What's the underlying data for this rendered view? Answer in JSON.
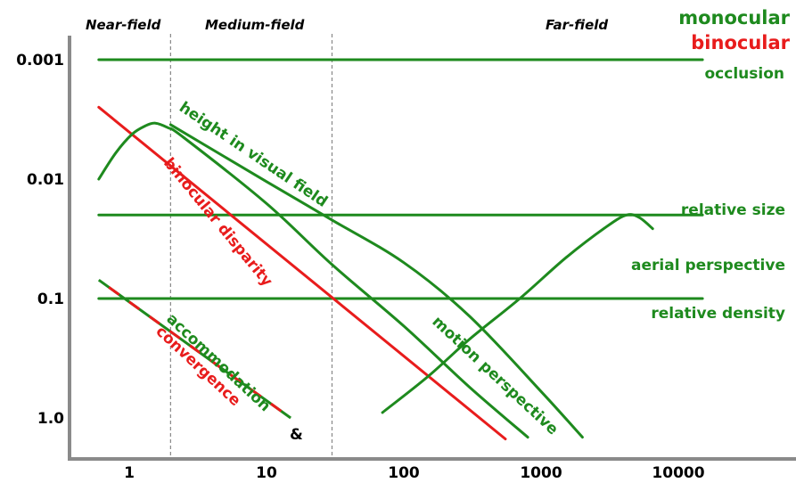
{
  "colors": {
    "monocular": "#1e8a1e",
    "binocular": "#e81c1c",
    "axis": "#888888",
    "text": "#000000"
  },
  "chart_data": {
    "type": "line",
    "title": "",
    "xlabel": "",
    "ylabel": "",
    "x_scale": "log",
    "y_scale": "log",
    "y_inverted": true,
    "xlim": [
      0.5,
      15000
    ],
    "ylim": [
      1.8,
      0.0007
    ],
    "x_ticks": [
      {
        "value": 1,
        "label": "1"
      },
      {
        "value": 10,
        "label": "10"
      },
      {
        "value": 100,
        "label": "100"
      },
      {
        "value": 1000,
        "label": "1000"
      },
      {
        "value": 10000,
        "label": "10000"
      }
    ],
    "y_ticks": [
      {
        "value": 0.001,
        "label": "0.001"
      },
      {
        "value": 0.01,
        "label": "0.01"
      },
      {
        "value": 0.1,
        "label": "0.1"
      },
      {
        "value": 1.0,
        "label": "1.0"
      }
    ],
    "regions": [
      {
        "label": "Near-field",
        "from": 0.5,
        "to": 2
      },
      {
        "label": "Medium-field",
        "from": 2,
        "to": 30
      },
      {
        "label": "Far-field",
        "from": 30,
        "to": 15000
      }
    ],
    "region_boundaries": [
      2,
      30
    ],
    "legend": [
      {
        "label": "monocular",
        "color": "#1e8a1e"
      },
      {
        "label": "binocular",
        "color": "#e81c1c"
      }
    ],
    "series": [
      {
        "name": "occlusion",
        "color": "#1e8a1e",
        "x": [
          0.6,
          15000
        ],
        "y": [
          0.001,
          0.001
        ]
      },
      {
        "name": "relative size",
        "color": "#1e8a1e",
        "x": [
          0.6,
          15000
        ],
        "y": [
          0.02,
          0.02
        ]
      },
      {
        "name": "relative density",
        "color": "#1e8a1e",
        "x": [
          0.6,
          15000
        ],
        "y": [
          0.1,
          0.1
        ]
      },
      {
        "name": "binocular disparity",
        "color": "#e81c1c",
        "x": [
          0.6,
          550
        ],
        "y": [
          0.0025,
          1.5
        ]
      },
      {
        "name": "height in visual field",
        "color": "#1e8a1e",
        "x": [
          0.6,
          0.8,
          1.05,
          1.3,
          1.55,
          1.9,
          2.5,
          10,
          30,
          100,
          300,
          800
        ],
        "y": [
          0.01,
          0.006,
          0.0042,
          0.0036,
          0.0034,
          0.0037,
          0.0045,
          0.016,
          0.052,
          0.17,
          0.55,
          1.45
        ]
      },
      {
        "name": "motion perspective",
        "color": "#1e8a1e",
        "x": [
          2,
          10,
          30,
          100,
          300,
          1000,
          2000
        ],
        "y": [
          0.0035,
          0.0105,
          0.022,
          0.05,
          0.14,
          0.6,
          1.45
        ]
      },
      {
        "name": "aerial perspective",
        "color": "#1e8a1e",
        "x": [
          70,
          150,
          300,
          700,
          1500,
          3000,
          4200,
          5200,
          6500
        ],
        "y": [
          0.9,
          0.45,
          0.22,
          0.1,
          0.046,
          0.025,
          0.02,
          0.021,
          0.026
        ]
      },
      {
        "name": "accommodation & convergence",
        "color": "#1e8a1e",
        "color2": "#e81c1c",
        "x": [
          0.6,
          15
        ],
        "y": [
          0.07,
          1.0
        ]
      }
    ],
    "labels": [
      {
        "text": "occlusion",
        "color": "#1e8a1e"
      },
      {
        "text": "height in visual field",
        "color": "#1e8a1e"
      },
      {
        "text": "binocular disparity",
        "color": "#e81c1c"
      },
      {
        "text": "relative size",
        "color": "#1e8a1e"
      },
      {
        "text": "aerial perspective",
        "color": "#1e8a1e"
      },
      {
        "text": "relative density",
        "color": "#1e8a1e"
      },
      {
        "text": "motion perspective",
        "color": "#1e8a1e"
      },
      {
        "text": "accommodation",
        "color": "#1e8a1e"
      },
      {
        "text": "&",
        "color": "#000000"
      },
      {
        "text": "convergence",
        "color": "#e81c1c"
      }
    ]
  }
}
